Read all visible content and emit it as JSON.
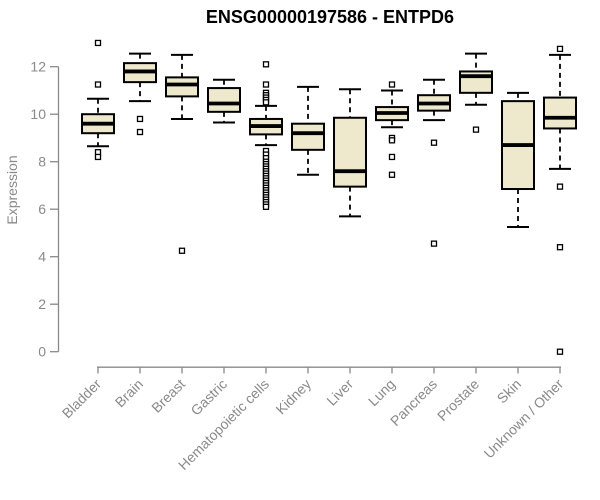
{
  "chart_data": {
    "type": "boxplot",
    "title": "ENSG00000197586 - ENTPD6",
    "xlabel": "",
    "ylabel": "Expression",
    "ylim": [
      0,
      13.3
    ],
    "yticks": [
      0,
      2,
      4,
      6,
      8,
      10,
      12
    ],
    "grid": false,
    "legend": "none",
    "categories": [
      "Bladder",
      "Brain",
      "Breast",
      "Gastric",
      "Hematopoietic cells",
      "Kidney",
      "Liver",
      "Lung",
      "Pancreas",
      "Prostate",
      "Skin",
      "Unknown / Other"
    ],
    "series": [
      {
        "name": "Bladder",
        "whisker_low": 8.65,
        "q1": 9.2,
        "median": 9.6,
        "q3": 10.0,
        "whisker_high": 10.65,
        "outliers": [
          13.0,
          11.25,
          8.4,
          8.2
        ]
      },
      {
        "name": "Brain",
        "whisker_low": 10.55,
        "q1": 11.35,
        "median": 11.8,
        "q3": 12.15,
        "whisker_high": 12.55,
        "outliers": [
          9.8,
          9.25
        ]
      },
      {
        "name": "Breast",
        "whisker_low": 9.8,
        "q1": 10.75,
        "median": 11.25,
        "q3": 11.55,
        "whisker_high": 12.5,
        "outliers": [
          4.25
        ]
      },
      {
        "name": "Gastric",
        "whisker_low": 9.65,
        "q1": 10.1,
        "median": 10.45,
        "q3": 11.1,
        "whisker_high": 11.45,
        "outliers": []
      },
      {
        "name": "Hematopoietic cells",
        "whisker_low": 8.7,
        "q1": 9.15,
        "median": 9.5,
        "q3": 9.8,
        "whisker_high": 10.35,
        "outliers": [
          12.1,
          11.25,
          10.9,
          10.8,
          10.7,
          10.6,
          10.5,
          8.45,
          8.3,
          8.15,
          8.0,
          7.9,
          7.8,
          7.7,
          7.6,
          7.5,
          7.4,
          7.3,
          7.2,
          7.1,
          7.0,
          6.9,
          6.8,
          6.7,
          6.6,
          6.5,
          6.4,
          6.3,
          6.2,
          6.1
        ]
      },
      {
        "name": "Kidney",
        "whisker_low": 7.45,
        "q1": 8.5,
        "median": 9.2,
        "q3": 9.6,
        "whisker_high": 11.15,
        "outliers": []
      },
      {
        "name": "Liver",
        "whisker_low": 5.7,
        "q1": 6.95,
        "median": 7.6,
        "q3": 9.85,
        "whisker_high": 11.05,
        "outliers": []
      },
      {
        "name": "Lung",
        "whisker_low": 9.45,
        "q1": 9.75,
        "median": 10.05,
        "q3": 10.3,
        "whisker_high": 11.0,
        "outliers": [
          11.25,
          9.0,
          8.9,
          8.2,
          7.45
        ]
      },
      {
        "name": "Pancreas",
        "whisker_low": 9.75,
        "q1": 10.15,
        "median": 10.45,
        "q3": 10.8,
        "whisker_high": 11.45,
        "outliers": [
          8.8,
          4.55
        ]
      },
      {
        "name": "Prostate",
        "whisker_low": 10.4,
        "q1": 10.9,
        "median": 11.6,
        "q3": 11.8,
        "whisker_high": 12.55,
        "outliers": [
          9.35
        ]
      },
      {
        "name": "Skin",
        "whisker_low": 5.25,
        "q1": 6.85,
        "median": 8.7,
        "q3": 10.55,
        "whisker_high": 10.9,
        "outliers": []
      },
      {
        "name": "Unknown / Other",
        "whisker_low": 7.7,
        "q1": 9.4,
        "median": 9.85,
        "q3": 10.7,
        "whisker_high": 12.5,
        "outliers": [
          12.75,
          6.95,
          4.4,
          0.0
        ]
      }
    ],
    "colors": {
      "box_fill": "#EEE8CD",
      "box_stroke": "#000000",
      "outlier_fill": "#ffffff",
      "axis": "#898989",
      "tick_label": "#8a8a8a",
      "title": "#000000"
    }
  }
}
